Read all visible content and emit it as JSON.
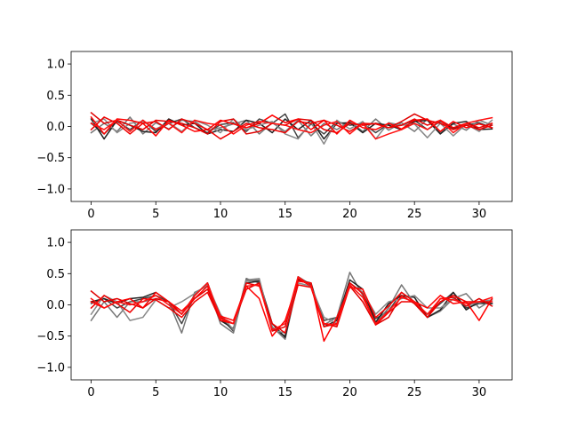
{
  "chart_data": [
    {
      "type": "line",
      "title": "",
      "xlabel": "",
      "ylabel": "",
      "xlim": [
        -1.55,
        32.55
      ],
      "ylim": [
        -1.2,
        1.2
      ],
      "xticks": [
        0,
        5,
        10,
        15,
        20,
        25,
        30
      ],
      "yticks": [
        -1.0,
        -0.5,
        0.0,
        0.5,
        1.0
      ],
      "ytick_labels": [
        "−1.0",
        "−0.5",
        "0.0",
        "0.5",
        "1.0"
      ],
      "grid": false,
      "x": [
        0,
        1,
        2,
        3,
        4,
        5,
        6,
        7,
        8,
        9,
        10,
        11,
        12,
        13,
        14,
        15,
        16,
        17,
        18,
        19,
        20,
        21,
        22,
        23,
        24,
        25,
        26,
        27,
        28,
        29,
        30,
        31
      ],
      "series": [
        {
          "color": "#444444",
          "values": [
            0.05,
            -0.12,
            0.08,
            -0.05,
            0.1,
            -0.08,
            0.05,
            0.12,
            -0.02,
            -0.1,
            0.03,
            0.06,
            -0.08,
            0.12,
            0.05,
            0.2,
            -0.18,
            0.04,
            -0.12,
            0.08,
            0.02,
            0.05,
            -0.1,
            0.04,
            0.02,
            0.1,
            -0.05,
            0.08,
            -0.03,
            0.02,
            0.06,
            -0.02
          ]
        },
        {
          "color": "#777777",
          "values": [
            -0.1,
            0.05,
            -0.08,
            0.15,
            -0.12,
            0.06,
            -0.04,
            0.1,
            0.08,
            -0.06,
            -0.02,
            0.04,
            0.1,
            -0.12,
            0.06,
            -0.08,
            0.1,
            -0.15,
            0.05,
            -0.05,
            0.08,
            -0.08,
            0.12,
            -0.06,
            0.06,
            -0.08,
            0.12,
            -0.1,
            0.04,
            -0.06,
            0.1,
            0.02
          ]
        },
        {
          "color": "#222222",
          "values": [
            0.12,
            -0.2,
            0.1,
            0.02,
            -0.08,
            -0.1,
            0.12,
            0.02,
            0.05,
            -0.12,
            -0.05,
            -0.08,
            0.1,
            0.05,
            -0.1,
            0.12,
            -0.05,
            0.1,
            -0.2,
            0.05,
            0.06,
            -0.1,
            0.05,
            0.02,
            -0.05,
            0.08,
            0.1,
            -0.12,
            0.05,
            0.08,
            -0.05,
            -0.04
          ]
        },
        {
          "color": "#888888",
          "values": [
            0.05,
            0.12,
            -0.1,
            0.05,
            0.08,
            -0.04,
            0.06,
            -0.08,
            0.1,
            0.02,
            -0.1,
            0.12,
            -0.05,
            0.02,
            0.08,
            -0.12,
            -0.2,
            0.06,
            -0.28,
            0.1,
            -0.04,
            0.08,
            -0.2,
            0.06,
            0.02,
            0.04,
            -0.18,
            0.05,
            -0.15,
            0.04,
            -0.08,
            0.1
          ]
        },
        {
          "color": "#e00000",
          "values": [
            0.22,
            0.05,
            0.1,
            0.02,
            -0.05,
            0.1,
            0.08,
            0.05,
            -0.02,
            -0.12,
            0.08,
            0.12,
            -0.12,
            -0.08,
            0.05,
            0.02,
            0.12,
            0.1,
            -0.05,
            -0.1,
            0.05,
            0.02,
            0.05,
            -0.02,
            0.08,
            0.2,
            0.1,
            0.05,
            -0.05,
            0.02,
            -0.05,
            0.02
          ]
        },
        {
          "color": "#ff0000",
          "values": [
            0.15,
            -0.12,
            0.12,
            0.1,
            0.05,
            -0.15,
            0.1,
            0.02,
            -0.08,
            -0.05,
            0.1,
            0.04,
            -0.02,
            0.05,
            0.18,
            0.06,
            0.12,
            -0.05,
            0.1,
            -0.12,
            0.1,
            -0.02,
            -0.05,
            0.05,
            -0.04,
            0.1,
            0.12,
            -0.08,
            0.08,
            -0.02,
            0.04,
            -0.02
          ]
        },
        {
          "color": "#ee0000",
          "values": [
            -0.05,
            0.15,
            0.05,
            -0.12,
            0.05,
            0.08,
            -0.05,
            0.12,
            0.05,
            -0.05,
            -0.2,
            -0.08,
            0.05,
            -0.02,
            -0.05,
            -0.1,
            0.08,
            0.05,
            0.1,
            0.02,
            -0.08,
            0.05,
            0.04,
            -0.02,
            0.02,
            0.12,
            0.02,
            0.1,
            -0.02,
            0.05,
            -0.02,
            0.05
          ]
        },
        {
          "color": "#ff1010",
          "values": [
            0.05,
            -0.05,
            0.1,
            -0.08,
            0.1,
            -0.05,
            0.05,
            -0.1,
            0.1,
            0.05,
            0.02,
            -0.12,
            0.02,
            0.08,
            0.05,
            0.02,
            -0.05,
            -0.1,
            0.02,
            0.08,
            -0.12,
            0.05,
            -0.2,
            -0.12,
            -0.05,
            0.05,
            -0.05,
            0.1,
            -0.1,
            0.05,
            0.1,
            0.14
          ]
        }
      ]
    },
    {
      "type": "line",
      "title": "",
      "xlabel": "",
      "ylabel": "",
      "xlim": [
        -1.55,
        32.55
      ],
      "ylim": [
        -1.2,
        1.2
      ],
      "xticks": [
        0,
        5,
        10,
        15,
        20,
        25,
        30
      ],
      "yticks": [
        -1.0,
        -0.5,
        0.0,
        0.5,
        1.0
      ],
      "ytick_labels": [
        "−1.0",
        "−0.5",
        "0.0",
        "0.5",
        "1.0"
      ],
      "grid": false,
      "x": [
        0,
        1,
        2,
        3,
        4,
        5,
        6,
        7,
        8,
        9,
        10,
        11,
        12,
        13,
        14,
        15,
        16,
        17,
        18,
        19,
        20,
        21,
        22,
        23,
        24,
        25,
        26,
        27,
        28,
        29,
        30,
        31
      ],
      "series": [
        {
          "color": "#444444",
          "values": [
            0.02,
            0.1,
            -0.05,
            0.05,
            0.1,
            0.15,
            0.05,
            -0.3,
            0.15,
            0.35,
            -0.2,
            -0.42,
            0.42,
            0.35,
            -0.38,
            -0.5,
            0.45,
            0.32,
            -0.25,
            -0.2,
            0.35,
            0.2,
            -0.22,
            -0.1,
            0.2,
            0.05,
            -0.15,
            0.02,
            0.2,
            -0.05,
            0.02,
            0.02
          ]
        },
        {
          "color": "#777777",
          "values": [
            -0.25,
            0.05,
            -0.2,
            0.05,
            0.05,
            0.1,
            0.05,
            -0.45,
            0.2,
            0.3,
            -0.3,
            -0.45,
            0.38,
            0.4,
            -0.35,
            -0.55,
            0.38,
            0.35,
            -0.32,
            -0.2,
            0.52,
            0.15,
            -0.3,
            -0.05,
            0.32,
            0.02,
            -0.2,
            -0.1,
            0.1,
            0.18,
            -0.05,
            0.08
          ]
        },
        {
          "color": "#222222",
          "values": [
            0.05,
            0.1,
            0.02,
            0.1,
            0.12,
            0.2,
            0.05,
            -0.15,
            0.15,
            0.35,
            -0.25,
            -0.38,
            0.35,
            0.38,
            -0.3,
            -0.52,
            0.4,
            0.35,
            -0.35,
            -0.25,
            0.4,
            0.25,
            -0.28,
            0.02,
            0.15,
            0.12,
            -0.2,
            -0.08,
            0.2,
            -0.08,
            0.05,
            0.02
          ]
        },
        {
          "color": "#888888",
          "values": [
            -0.15,
            0.15,
            0.05,
            -0.25,
            -0.2,
            0.08,
            -0.05,
            0.05,
            0.18,
            0.32,
            -0.15,
            -0.4,
            0.4,
            0.42,
            -0.4,
            -0.45,
            0.35,
            0.3,
            -0.2,
            -0.3,
            0.35,
            0.2,
            -0.15,
            0.05,
            0.1,
            0.15,
            -0.05,
            -0.05,
            0.1,
            -0.02,
            0.05,
            0.08
          ]
        },
        {
          "color": "#e00000",
          "values": [
            0.22,
            0.05,
            0.1,
            0.02,
            -0.05,
            0.1,
            0.05,
            -0.15,
            0.1,
            0.25,
            -0.2,
            -0.3,
            0.25,
            0.35,
            -0.42,
            -0.35,
            0.42,
            0.3,
            -0.3,
            -0.35,
            0.3,
            0.05,
            -0.32,
            -0.2,
            0.15,
            0.02,
            -0.2,
            0.1,
            0.12,
            -0.02,
            0.1,
            -0.02
          ]
        },
        {
          "color": "#ff0000",
          "values": [
            0.05,
            -0.05,
            0.05,
            0.1,
            -0.05,
            0.2,
            0.05,
            -0.1,
            0.1,
            0.3,
            -0.18,
            -0.25,
            0.3,
            0.1,
            -0.5,
            -0.25,
            0.38,
            0.35,
            -0.58,
            -0.2,
            0.28,
            0.25,
            -0.2,
            -0.02,
            0.2,
            0.05,
            -0.05,
            0.15,
            0.02,
            0.05,
            -0.25,
            0.1
          ]
        },
        {
          "color": "#ee0000",
          "values": [
            -0.05,
            0.15,
            0.02,
            -0.12,
            0.1,
            0.08,
            -0.05,
            -0.2,
            0.05,
            0.2,
            -0.25,
            -0.3,
            0.35,
            0.3,
            -0.3,
            -0.45,
            0.32,
            0.28,
            -0.35,
            -0.3,
            0.35,
            0.18,
            -0.32,
            -0.12,
            0.05,
            0.05,
            -0.2,
            0.05,
            0.15,
            0.05,
            0.05,
            0.05
          ]
        },
        {
          "color": "#ff1010",
          "values": [
            0.1,
            -0.05,
            0.05,
            0.0,
            0.05,
            0.15,
            0.0,
            -0.15,
            0.15,
            0.35,
            -0.22,
            -0.3,
            0.3,
            0.32,
            -0.4,
            -0.3,
            0.45,
            0.3,
            -0.3,
            -0.32,
            0.32,
            0.12,
            -0.3,
            -0.1,
            0.12,
            0.05,
            -0.15,
            0.1,
            0.08,
            0.02,
            0.05,
            0.12
          ]
        }
      ]
    }
  ]
}
